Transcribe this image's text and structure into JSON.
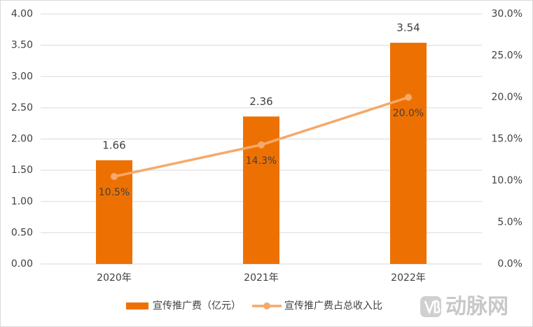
{
  "chart_data": {
    "type": "combo",
    "categories": [
      "2020年",
      "2021年",
      "2022年"
    ],
    "series": [
      {
        "name": "宣传推广费（亿元）",
        "type": "bar",
        "color": "#ed7102",
        "values": [
          1.66,
          2.36,
          3.54
        ]
      },
      {
        "name": "宣传推广费占总收入比",
        "type": "line",
        "axis": "y2",
        "color": "#f5a96a",
        "values": [
          10.5,
          14.3,
          20.0
        ],
        "value_labels": [
          "10.5%",
          "14.3%",
          "20.0%"
        ]
      }
    ],
    "ylim": [
      0,
      4
    ],
    "yticks": [
      {
        "value": 0,
        "label": "0.00"
      },
      {
        "value": 0.5,
        "label": "0.50"
      },
      {
        "value": 1,
        "label": "1.00"
      },
      {
        "value": 1.5,
        "label": "1.50"
      },
      {
        "value": 2,
        "label": "2.00"
      },
      {
        "value": 2.5,
        "label": "2.50"
      },
      {
        "value": 3,
        "label": "3.00"
      },
      {
        "value": 3.5,
        "label": "3.50"
      },
      {
        "value": 4,
        "label": "4.00"
      }
    ],
    "y2lim": [
      0,
      30
    ],
    "y2ticks": [
      {
        "value": 0,
        "label": "0.0%"
      },
      {
        "value": 5,
        "label": "5.0%"
      },
      {
        "value": 10,
        "label": "10.0%"
      },
      {
        "value": 15,
        "label": "15.0%"
      },
      {
        "value": 20,
        "label": "20.0%"
      },
      {
        "value": 25,
        "label": "25.0%"
      },
      {
        "value": 30,
        "label": "30.0%"
      }
    ],
    "grid": true,
    "legend": "bottom"
  },
  "watermark": "动脉网"
}
